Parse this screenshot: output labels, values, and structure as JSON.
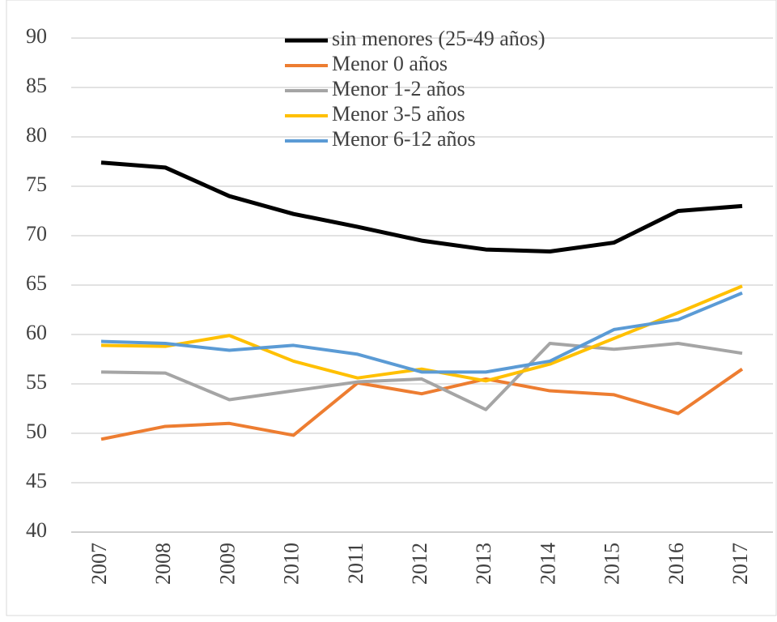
{
  "chart_data": {
    "type": "line",
    "categories": [
      "2007",
      "2008",
      "2009",
      "2010",
      "2011",
      "2012",
      "2013",
      "2014",
      "2015",
      "2016",
      "2017"
    ],
    "series": [
      {
        "name": "sin menores (25-49 años)",
        "color": "#000000",
        "values": [
          77.4,
          76.9,
          74.0,
          72.2,
          70.9,
          69.5,
          68.6,
          68.4,
          69.3,
          72.5,
          73.0
        ]
      },
      {
        "name": "Menor 0 años",
        "color": "#ed7d31",
        "values": [
          49.4,
          50.7,
          51.0,
          49.8,
          55.1,
          54.0,
          55.5,
          54.3,
          53.9,
          52.0,
          56.5
        ]
      },
      {
        "name": "Menor 1-2 años",
        "color": "#a5a5a5",
        "values": [
          56.2,
          56.1,
          53.4,
          54.3,
          55.2,
          55.5,
          52.4,
          59.1,
          58.5,
          59.1,
          58.1
        ]
      },
      {
        "name": "Menor 3-5 años",
        "color": "#ffc000",
        "values": [
          58.9,
          58.8,
          59.9,
          57.3,
          55.6,
          56.5,
          55.3,
          57.0,
          59.6,
          62.2,
          64.9
        ]
      },
      {
        "name": "Menor 6-12 años",
        "color": "#5b9bd5",
        "values": [
          59.3,
          59.1,
          58.4,
          58.9,
          58.0,
          56.2,
          56.2,
          57.3,
          60.5,
          61.5,
          64.2
        ]
      }
    ],
    "ylim": [
      40,
      90
    ],
    "yticks": [
      40,
      45,
      50,
      55,
      60,
      65,
      70,
      75,
      80,
      85,
      90
    ],
    "grid": true,
    "legend": "top"
  }
}
